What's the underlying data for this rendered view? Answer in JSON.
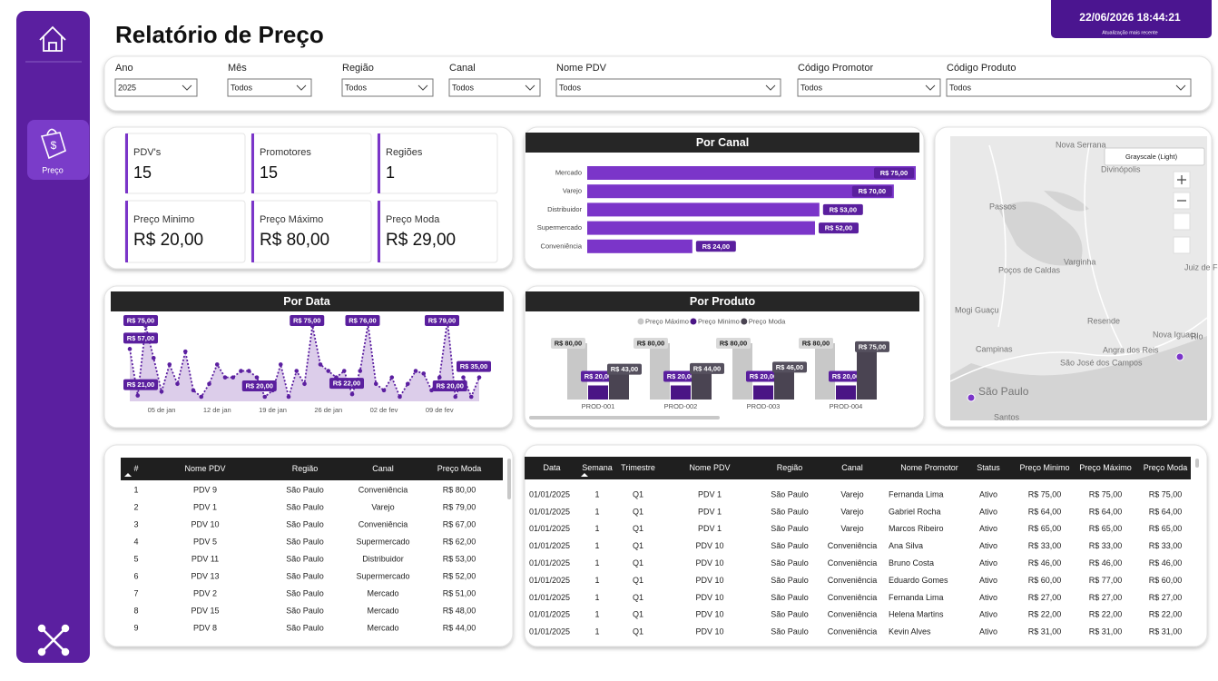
{
  "header": {
    "title": "Relatório de Preço",
    "updated": "22/06/2026 18:44:21",
    "updated_label": "Atualização mais recente"
  },
  "nav": {
    "active": "Preço"
  },
  "filters": [
    {
      "label": "Ano",
      "value": "2025"
    },
    {
      "label": "Mês",
      "value": "Todos"
    },
    {
      "label": "Região",
      "value": "Todos"
    },
    {
      "label": "Canal",
      "value": "Todos"
    },
    {
      "label": "Nome PDV",
      "value": "Todos"
    },
    {
      "label": "Código Promotor",
      "value": "Todos"
    },
    {
      "label": "Código Produto",
      "value": "Todos"
    }
  ],
  "kpis": [
    {
      "label": "PDV's",
      "value": "15"
    },
    {
      "label": "Promotores",
      "value": "15"
    },
    {
      "label": "Regiões",
      "value": "1"
    },
    {
      "label": "Preço Minimo",
      "value": "R$ 20,00"
    },
    {
      "label": "Preço Máximo",
      "value": "R$ 80,00"
    },
    {
      "label": "Preço Moda",
      "value": "R$ 29,00"
    }
  ],
  "chart_data": [
    {
      "type": "hbar",
      "title": "Por Canal",
      "color": "#7b35c9",
      "label_color": "#5a1f9e",
      "categories": [
        "Mercado",
        "Varejo",
        "Distribuidor",
        "Supermercado",
        "Conveniência"
      ],
      "values": [
        75,
        70,
        53,
        52,
        24
      ],
      "value_labels": [
        "R$ 75,00",
        "R$ 70,00",
        "R$ 53,00",
        "R$ 52,00",
        "R$ 24,00"
      ]
    },
    {
      "type": "line",
      "title": "Por Data",
      "color": "#5b1fa0",
      "area_color": "#dccdea",
      "label_color": "#5a1f9e",
      "categories": [
        null,
        null,
        null,
        null,
        "05 de jan",
        null,
        null,
        null,
        null,
        null,
        null,
        "12 de jan",
        null,
        null,
        null,
        null,
        null,
        null,
        "19 de jan",
        null,
        null,
        null,
        null,
        null,
        null,
        "26 de jan",
        null,
        null,
        null,
        null,
        null,
        null,
        "02 de fev",
        null,
        null,
        null,
        null,
        null,
        null,
        "09 de fev",
        null,
        null,
        null,
        null,
        null
      ],
      "values": [
        57,
        21,
        75,
        50,
        24,
        45,
        30,
        55,
        25,
        20,
        30,
        45,
        35,
        35,
        40,
        40,
        35,
        20,
        25,
        45,
        20,
        40,
        30,
        75,
        45,
        40,
        35,
        40,
        22,
        40,
        76,
        30,
        25,
        35,
        20,
        30,
        40,
        38,
        25,
        35,
        79,
        20,
        35,
        20,
        35
      ],
      "value_labels": [
        "R$ 57,00",
        "R$ 21,00",
        "R$ 75,00",
        null,
        null,
        null,
        null,
        null,
        null,
        null,
        null,
        null,
        null,
        null,
        null,
        null,
        null,
        "R$ 20,00",
        null,
        null,
        null,
        null,
        null,
        "R$ 75,00",
        null,
        null,
        null,
        null,
        "R$ 22,00",
        null,
        "R$ 76,00",
        null,
        null,
        null,
        null,
        null,
        null,
        null,
        null,
        null,
        "R$ 79,00",
        "R$ 20,00",
        null,
        null,
        "R$ 35,00"
      ]
    },
    {
      "type": "bar",
      "title": "Por Produto",
      "categories": [
        "PROD-001",
        "PROD-002",
        "PROD-003",
        "PROD-004"
      ],
      "series": [
        {
          "name": "Preço Máximo",
          "color": "#c8c8c8",
          "label_color": "#d9d9d9",
          "values": [
            80,
            80,
            80,
            80
          ],
          "value_labels": [
            "R$ 80,00",
            "R$ 80,00",
            "R$ 80,00",
            "R$ 80,00"
          ]
        },
        {
          "name": "Preço Minimo",
          "color": "#4a1585",
          "label_color": "#5a1f9e",
          "values": [
            20,
            20,
            20,
            20
          ],
          "value_labels": [
            "R$ 20,00",
            "R$ 20,00",
            "R$ 20,00",
            "R$ 20,00"
          ]
        },
        {
          "name": "Preço Moda",
          "color": "#4a4452",
          "label_color": "#55505e",
          "values": [
            43,
            44,
            46,
            75
          ],
          "value_labels": [
            "R$ 43,00",
            "R$ 44,00",
            "R$ 46,00",
            "R$ 75,00"
          ]
        }
      ]
    }
  ],
  "map": {
    "style": "Grayscale (Light)",
    "labels": [
      "Nova Serrana",
      "Divinópolis",
      "Passos",
      "Poços de Caldas",
      "Varginha",
      "Juiz de Fora",
      "Mogi Guaçu",
      "Resende",
      "Nova Iguaçu",
      "Campinas",
      "São José dos Campos",
      "Angra dos Reis",
      "São Paulo",
      "Rio",
      "Santos"
    ]
  },
  "table_pdv": {
    "columns": [
      "#",
      "Nome PDV",
      "Região",
      "Canal",
      "Preço Moda"
    ],
    "rows": [
      [
        "1",
        "PDV 9",
        "São Paulo",
        "Conveniência",
        "R$ 80,00"
      ],
      [
        "2",
        "PDV 1",
        "São Paulo",
        "Varejo",
        "R$ 79,00"
      ],
      [
        "3",
        "PDV 10",
        "São Paulo",
        "Conveniência",
        "R$ 67,00"
      ],
      [
        "4",
        "PDV 5",
        "São Paulo",
        "Supermercado",
        "R$ 62,00"
      ],
      [
        "5",
        "PDV 11",
        "São Paulo",
        "Distribuidor",
        "R$ 53,00"
      ],
      [
        "6",
        "PDV 13",
        "São Paulo",
        "Supermercado",
        "R$ 52,00"
      ],
      [
        "7",
        "PDV 2",
        "São Paulo",
        "Mercado",
        "R$ 51,00"
      ],
      [
        "8",
        "PDV 15",
        "São Paulo",
        "Mercado",
        "R$ 48,00"
      ],
      [
        "9",
        "PDV 8",
        "São Paulo",
        "Mercado",
        "R$ 44,00"
      ]
    ]
  },
  "table_detail": {
    "columns": [
      "Data",
      "Semana",
      "Trimestre",
      "Nome PDV",
      "Região",
      "Canal",
      "Nome Promotor",
      "Status",
      "Preço Minimo",
      "Preço Máximo",
      "Preço Moda"
    ],
    "rows": [
      [
        "01/01/2025",
        "1",
        "Q1",
        "PDV 1",
        "São Paulo",
        "Varejo",
        "Fernanda Lima",
        "Ativo",
        "R$ 75,00",
        "R$ 75,00",
        "R$ 75,00"
      ],
      [
        "01/01/2025",
        "1",
        "Q1",
        "PDV 1",
        "São Paulo",
        "Varejo",
        "Gabriel Rocha",
        "Ativo",
        "R$ 64,00",
        "R$ 64,00",
        "R$ 64,00"
      ],
      [
        "01/01/2025",
        "1",
        "Q1",
        "PDV 1",
        "São Paulo",
        "Varejo",
        "Marcos Ribeiro",
        "Ativo",
        "R$ 65,00",
        "R$ 65,00",
        "R$ 65,00"
      ],
      [
        "01/01/2025",
        "1",
        "Q1",
        "PDV 10",
        "São Paulo",
        "Conveniência",
        "Ana Silva",
        "Ativo",
        "R$ 33,00",
        "R$ 33,00",
        "R$ 33,00"
      ],
      [
        "01/01/2025",
        "1",
        "Q1",
        "PDV 10",
        "São Paulo",
        "Conveniência",
        "Bruno Costa",
        "Ativo",
        "R$ 46,00",
        "R$ 46,00",
        "R$ 46,00"
      ],
      [
        "01/01/2025",
        "1",
        "Q1",
        "PDV 10",
        "São Paulo",
        "Conveniência",
        "Eduardo Gomes",
        "Ativo",
        "R$ 60,00",
        "R$ 77,00",
        "R$ 60,00"
      ],
      [
        "01/01/2025",
        "1",
        "Q1",
        "PDV 10",
        "São Paulo",
        "Conveniência",
        "Fernanda Lima",
        "Ativo",
        "R$ 27,00",
        "R$ 27,00",
        "R$ 27,00"
      ],
      [
        "01/01/2025",
        "1",
        "Q1",
        "PDV 10",
        "São Paulo",
        "Conveniência",
        "Helena Martins",
        "Ativo",
        "R$ 22,00",
        "R$ 22,00",
        "R$ 22,00"
      ],
      [
        "01/01/2025",
        "1",
        "Q1",
        "PDV 10",
        "São Paulo",
        "Conveniência",
        "Kevin Alves",
        "Ativo",
        "R$ 31,00",
        "R$ 31,00",
        "R$ 31,00"
      ]
    ]
  }
}
